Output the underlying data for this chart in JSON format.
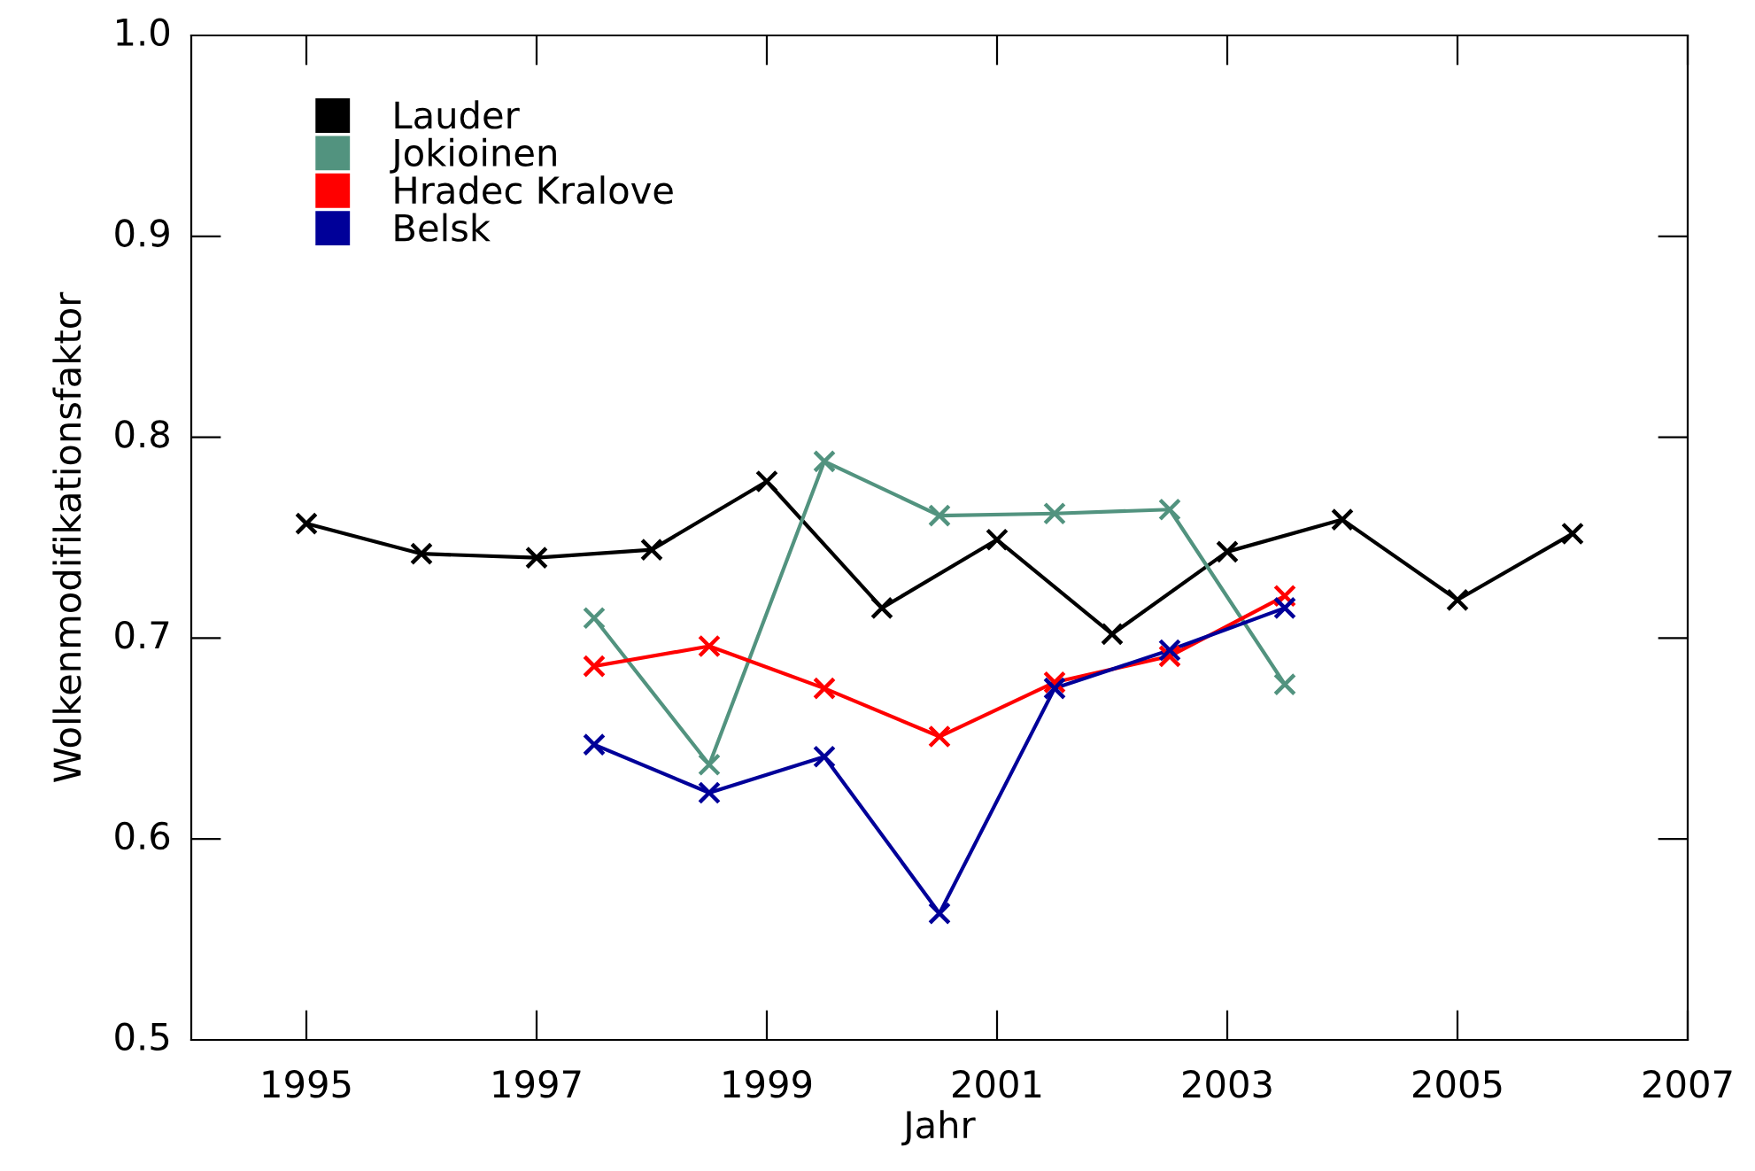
{
  "chart_data": {
    "type": "line",
    "xlabel": "Jahr",
    "ylabel": "Wolkenmodifikationsfaktor",
    "xlim": [
      1994,
      2007
    ],
    "ylim": [
      0.5,
      1.0
    ],
    "xticks": [
      1995,
      1997,
      1999,
      2001,
      2003,
      2005,
      2007
    ],
    "yticks": [
      {
        "value": 0.5,
        "label": "0.5"
      },
      {
        "value": 0.6,
        "label": "0.6"
      },
      {
        "value": 0.7,
        "label": "0.7"
      },
      {
        "value": 0.8,
        "label": "0.8"
      },
      {
        "value": 0.9,
        "label": "0.9"
      },
      {
        "value": 1.0,
        "label": "1.0"
      }
    ],
    "grid": false,
    "legend": "top left",
    "marker": "cross",
    "line_style": "solid",
    "series": [
      {
        "name": "Lauder",
        "color": "#000000",
        "x": [
          1995,
          1996,
          1997,
          1998,
          1999,
          2000,
          2001,
          2002,
          2003,
          2004,
          2005,
          2006
        ],
        "values": [
          0.757,
          0.742,
          0.74,
          0.744,
          0.778,
          0.715,
          0.749,
          0.702,
          0.743,
          0.759,
          0.719,
          0.752
        ]
      },
      {
        "name": "Jokioinen",
        "color": "#52937f",
        "x": [
          1997.5,
          1998.5,
          1999.5,
          2000.5,
          2001.5,
          2002.5,
          2003.5
        ],
        "values": [
          0.71,
          0.637,
          0.788,
          0.761,
          0.762,
          0.764,
          0.677
        ]
      },
      {
        "name": "Hradec Kralove",
        "color": "#ff0000",
        "x": [
          1997.5,
          1998.5,
          1999.5,
          2000.5,
          2001.5,
          2002.5,
          2003.5
        ],
        "values": [
          0.686,
          0.696,
          0.675,
          0.651,
          0.678,
          0.691,
          0.721
        ]
      },
      {
        "name": "Belsk",
        "color": "#000099",
        "x": [
          1997.5,
          1998.5,
          1999.5,
          2000.5,
          2001.5,
          2002.5,
          2003.5
        ],
        "values": [
          0.647,
          0.623,
          0.641,
          0.563,
          0.675,
          0.694,
          0.715
        ]
      }
    ]
  }
}
